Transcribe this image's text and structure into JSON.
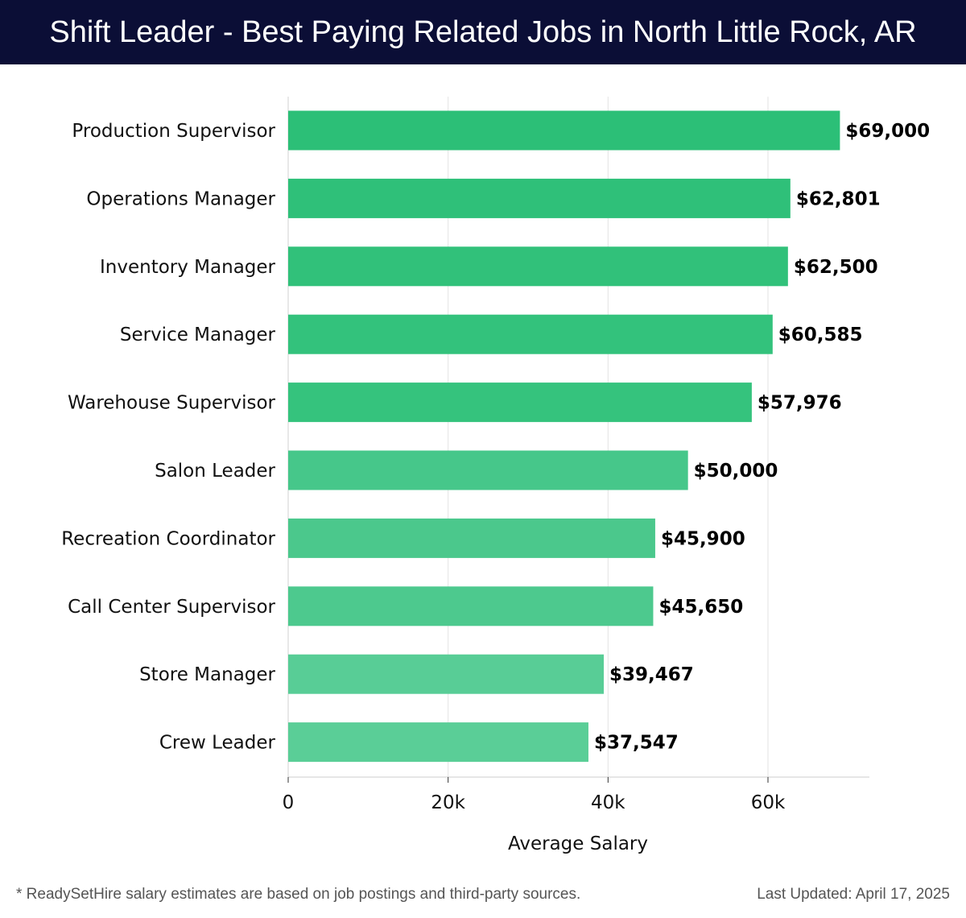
{
  "header": {
    "title": "Shift Leader - Best Paying Related Jobs in North Little Rock, AR"
  },
  "footer": {
    "note": "* ReadySetHire salary estimates are based on job postings and third-party sources.",
    "updated": "Last Updated: April 17, 2025"
  },
  "chart_data": {
    "type": "bar",
    "orientation": "horizontal",
    "title": "Shift Leader - Best Paying Related Jobs in North Little Rock, AR",
    "xlabel": "Average Salary",
    "ylabel": "",
    "xlim": [
      0,
      72500
    ],
    "x_ticks": [
      {
        "value": 0,
        "label": "0"
      },
      {
        "value": 20000,
        "label": "20k"
      },
      {
        "value": 40000,
        "label": "40k"
      },
      {
        "value": 60000,
        "label": "60k"
      }
    ],
    "grid": true,
    "categories": [
      "Production Supervisor",
      "Operations Manager",
      "Inventory Manager",
      "Service Manager",
      "Warehouse Supervisor",
      "Salon Leader",
      "Recreation Coordinator",
      "Call Center Supervisor",
      "Store Manager",
      "Crew Leader"
    ],
    "values": [
      69000,
      62801,
      62500,
      60585,
      57976,
      50000,
      45900,
      45650,
      39467,
      37547
    ],
    "value_labels": [
      "$69,000",
      "$62,801",
      "$62,500",
      "$60,585",
      "$57,976",
      "$50,000",
      "$45,900",
      "$45,650",
      "$39,467",
      "$37,547"
    ],
    "colors": [
      "#2cbf77",
      "#2fc079",
      "#31c17a",
      "#33c27c",
      "#35c37d",
      "#46c78a",
      "#4bc88c",
      "#4dc98e",
      "#58cd96",
      "#5ace97"
    ]
  }
}
